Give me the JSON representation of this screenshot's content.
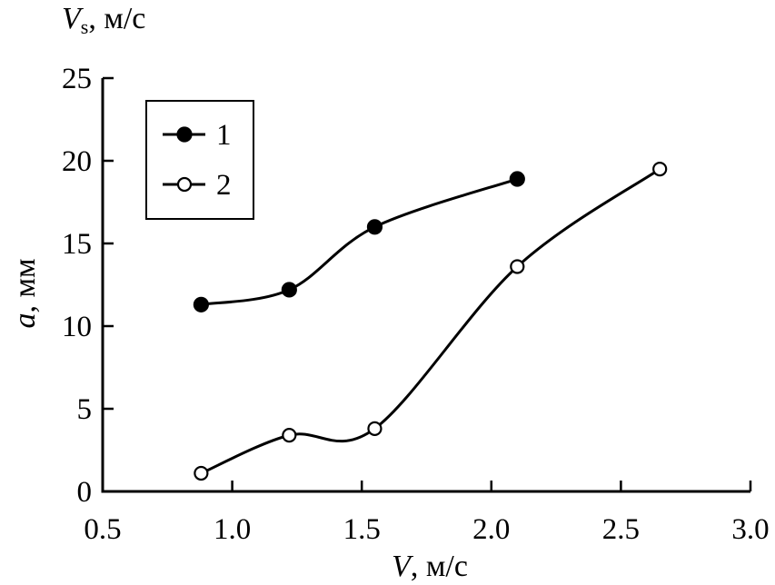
{
  "chart_data": {
    "type": "line",
    "top_label": {
      "var": "V",
      "sub": "s",
      "unit": ", м/с"
    },
    "xlabel": {
      "var": "V",
      "unit": ", м/с"
    },
    "ylabel": {
      "var": "a",
      "unit": ", мм"
    },
    "xlim": [
      0.5,
      3.0
    ],
    "ylim": [
      0,
      25
    ],
    "x_ticks": [
      0.5,
      1.0,
      1.5,
      2.0,
      2.5,
      3.0
    ],
    "x_tick_labels": [
      "0.5",
      "1.0",
      "1.5",
      "2.0",
      "2.5",
      "3.0"
    ],
    "y_ticks": [
      0,
      5,
      10,
      15,
      20,
      25
    ],
    "y_tick_labels": [
      "0",
      "5",
      "10",
      "15",
      "20",
      "25"
    ],
    "grid": false,
    "legend_position": "top-left",
    "series": [
      {
        "name": "1",
        "marker": "filled-circle",
        "x": [
          0.88,
          1.22,
          1.55,
          2.1
        ],
        "y": [
          11.3,
          12.2,
          16.0,
          18.9
        ]
      },
      {
        "name": "2",
        "marker": "open-circle",
        "x": [
          0.88,
          1.22,
          1.55,
          2.1,
          2.65
        ],
        "y": [
          1.1,
          3.4,
          3.8,
          13.6,
          19.5
        ]
      }
    ]
  }
}
